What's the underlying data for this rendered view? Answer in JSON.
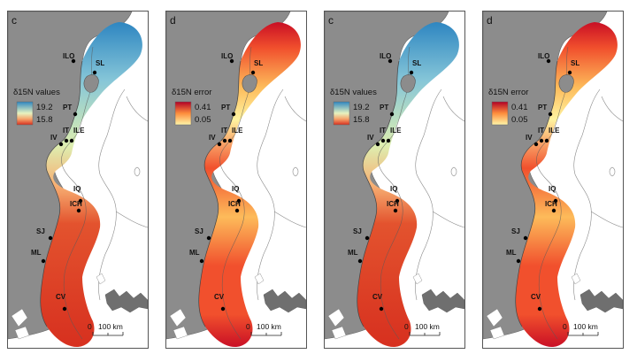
{
  "panels": [
    {
      "label": "c",
      "legend_title": "δ15N values",
      "legend_max": "19.2",
      "legend_min": "15.8",
      "type": "values"
    },
    {
      "label": "d",
      "legend_title": "δ15N error",
      "legend_max": "0.41",
      "legend_min": "0.05",
      "type": "error"
    },
    {
      "label": "c",
      "legend_title": "δ15N values",
      "legend_max": "19.2",
      "legend_min": "15.8",
      "type": "values"
    },
    {
      "label": "d",
      "legend_title": "δ15N error",
      "legend_max": "0.41",
      "legend_min": "0.05",
      "type": "error"
    }
  ],
  "sites": [
    "ILO",
    "SL",
    "PT",
    "IT",
    "ILE",
    "IV",
    "IQ",
    "ICH",
    "SJ",
    "ML",
    "CV"
  ],
  "scale_bar": {
    "zero": "0",
    "label": "100 km"
  },
  "colors": {
    "land": "#8c8c8c",
    "values_ramp": [
      "#2e86c1",
      "#86c6d8",
      "#ddeeb0",
      "#f7b174",
      "#e3532e",
      "#d7301f"
    ],
    "error_ramp": [
      "#fff3a0",
      "#fdbb5a",
      "#f1502d",
      "#c90f25"
    ]
  }
}
